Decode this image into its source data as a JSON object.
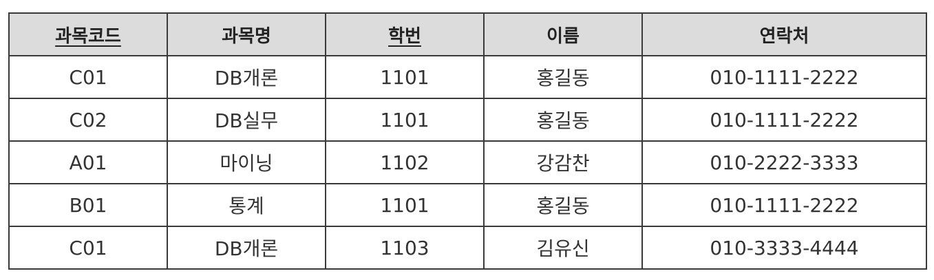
{
  "table": {
    "headers": [
      {
        "label": "과목코드",
        "primary_key": true
      },
      {
        "label": "과목명",
        "primary_key": false
      },
      {
        "label": "학번",
        "primary_key": true
      },
      {
        "label": "이름",
        "primary_key": false
      },
      {
        "label": "연락처",
        "primary_key": false
      }
    ],
    "rows": [
      [
        "C01",
        "DB개론",
        "1101",
        "홍길동",
        "010-1111-2222"
      ],
      [
        "C02",
        "DB실무",
        "1101",
        "홍길동",
        "010-1111-2222"
      ],
      [
        "A01",
        "마이닝",
        "1102",
        "강감찬",
        "010-2222-3333"
      ],
      [
        "B01",
        "통계",
        "1101",
        "홍길동",
        "010-1111-2222"
      ],
      [
        "C01",
        "DB개론",
        "1103",
        "김유신",
        "010-3333-4444"
      ]
    ]
  }
}
